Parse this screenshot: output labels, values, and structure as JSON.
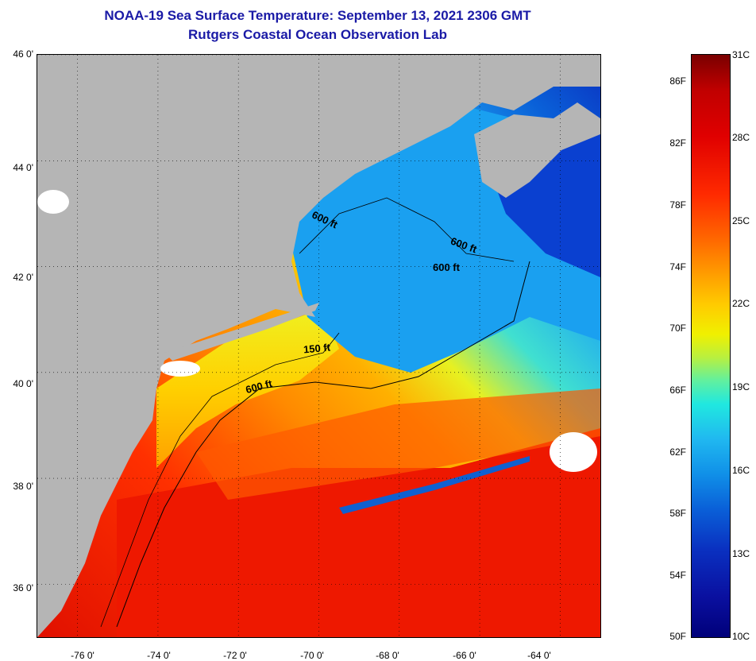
{
  "title": "NOAA-19 Sea Surface Temperature:  September 13, 2021 2306 GMT",
  "subtitle": "Rutgers Coastal Ocean Observation Lab",
  "map": {
    "lat_labels": [
      "46 0'",
      "44 0'",
      "42 0'",
      "40 0'",
      "38 0'",
      "36 0'"
    ],
    "lon_labels": [
      "-76 0'",
      "-74 0'",
      "-72 0'",
      "-70 0'",
      "-68 0'",
      "-66 0'",
      "-64 0'"
    ],
    "lat_range": [
      35.0,
      46.0
    ],
    "lon_range": [
      -77.0,
      -63.0
    ],
    "isobath_labels": [
      "600 ft",
      "600 ft",
      "600 ft",
      "150 ft",
      "600 ft"
    ],
    "colors": {
      "land": "#b5b5b5",
      "cloud": "#ffffff",
      "warm": "#ff2a00",
      "cool": "#1090e8"
    }
  },
  "colorbar": {
    "fahrenheit_labels": [
      "86F",
      "82F",
      "78F",
      "74F",
      "70F",
      "66F",
      "62F",
      "58F",
      "54F",
      "50F"
    ],
    "celsius_labels": [
      "31C",
      "28C",
      "25C",
      "22C",
      "19C",
      "16C",
      "13C",
      "10C"
    ],
    "range_c": [
      10,
      31
    ]
  }
}
